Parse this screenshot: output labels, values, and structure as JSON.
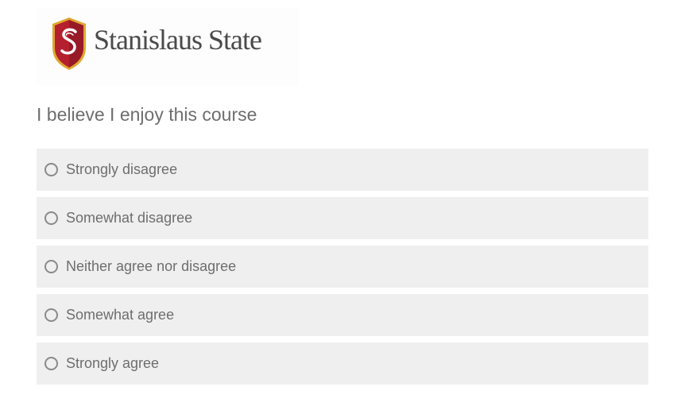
{
  "brand": {
    "name": "Stanislaus State",
    "shield_monogram": "S",
    "colors": {
      "shield_red": "#b5202e",
      "shield_dark": "#7d1622",
      "shield_gold": "#e0a82e"
    }
  },
  "question": {
    "text": "I believe I enjoy this course"
  },
  "options": [
    {
      "label": "Strongly disagree",
      "selected": false
    },
    {
      "label": "Somewhat disagree",
      "selected": false
    },
    {
      "label": "Neither agree nor disagree",
      "selected": false
    },
    {
      "label": "Somewhat agree",
      "selected": false
    },
    {
      "label": "Strongly agree",
      "selected": false
    }
  ]
}
